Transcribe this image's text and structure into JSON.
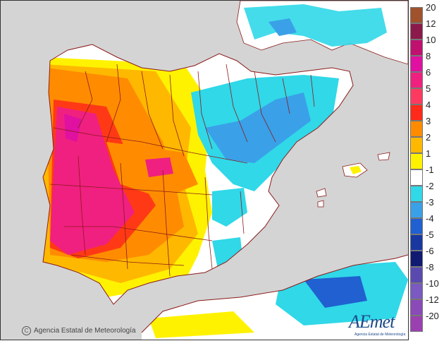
{
  "map": {
    "region": "Iberian Peninsula and Balearic Islands",
    "sea_color": "#d4d4d4",
    "land_color": "#ffffff",
    "border_color": "#8b1a1a"
  },
  "legend": {
    "entries": [
      {
        "label": "20",
        "color": "#a0522d"
      },
      {
        "label": "12",
        "color": "#8b1a4a"
      },
      {
        "label": "10",
        "color": "#c01070"
      },
      {
        "label": "8",
        "color": "#e010a0"
      },
      {
        "label": "6",
        "color": "#f02080"
      },
      {
        "label": "5",
        "color": "#ff3a60"
      },
      {
        "label": "4",
        "color": "#ff2a1a"
      },
      {
        "label": "3",
        "color": "#ff8c00"
      },
      {
        "label": "2",
        "color": "#ffb800"
      },
      {
        "label": "1",
        "color": "#fff200"
      },
      {
        "label": "-1",
        "color": "#ffffff"
      },
      {
        "label": "-2",
        "color": "#30d8e8"
      },
      {
        "label": "-3",
        "color": "#3aa0e8"
      },
      {
        "label": "-4",
        "color": "#2060d0"
      },
      {
        "label": "-5",
        "color": "#1838a0"
      },
      {
        "label": "-6",
        "color": "#101a70"
      },
      {
        "label": "-8",
        "color": "#5a4ab0"
      },
      {
        "label": "-10",
        "color": "#7a5ac0"
      },
      {
        "label": "-12",
        "color": "#8a4ab8"
      },
      {
        "label": "-20",
        "color": "#9a40b0"
      }
    ]
  },
  "credit": {
    "copyright_symbol": "C",
    "text": "Agencia Estatal de Meteorología"
  },
  "logo": {
    "name": "AEmet",
    "subtitle": "Agencia Estatal de Meteorología"
  }
}
